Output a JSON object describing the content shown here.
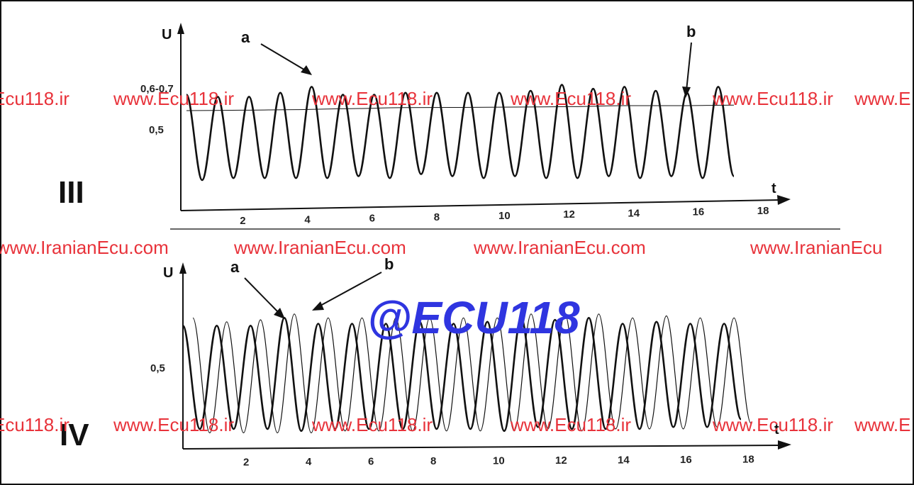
{
  "chart_data": [
    {
      "type": "line",
      "panel_label": "III",
      "ylabel": "U",
      "xlabel": "t",
      "x_ticks": [
        "2",
        "4",
        "6",
        "8",
        "10",
        "12",
        "14",
        "16",
        "18"
      ],
      "y_ticks": [
        "0,5",
        "0,6-0,7"
      ],
      "xlim": [
        0,
        18.5
      ],
      "annotations": [
        "a",
        "b"
      ],
      "series": [
        {
          "values": [
            0.63,
            0.2,
            0.62,
            0.21,
            0.62,
            0.21,
            0.64,
            0.21,
            0.67,
            0.21,
            0.63,
            0.22,
            0.63,
            0.21,
            0.64,
            0.23,
            0.64,
            0.22,
            0.64,
            0.21,
            0.64,
            0.22,
            0.65,
            0.21,
            0.68,
            0.21,
            0.66,
            0.22,
            0.67,
            0.21,
            0.65,
            0.22,
            0.64,
            0.21,
            0.67,
            0.22
          ]
        },
        {
          "values": [
            0.55,
            0.552,
            0.555,
            0.56,
            0.565,
            0.566,
            0.568,
            0.57,
            0.575,
            0.575,
            0.578
          ]
        }
      ]
    },
    {
      "type": "line",
      "panel_label": "IV",
      "ylabel": "U",
      "xlabel": "t",
      "x_ticks": [
        "2",
        "4",
        "6",
        "8",
        "10",
        "12",
        "14",
        "16",
        "18"
      ],
      "y_ticks": [
        "0,5"
      ],
      "xlim": [
        0,
        18.5
      ],
      "annotations": [
        "a",
        "b"
      ],
      "series": [
        {
          "values": [
            0.68,
            0.15,
            0.68,
            0.15,
            0.68,
            0.15,
            0.72,
            0.14,
            0.69,
            0.15,
            0.69,
            0.15,
            0.69,
            0.15,
            0.7,
            0.15,
            0.69,
            0.15,
            0.7,
            0.14,
            0.72,
            0.16,
            0.71,
            0.15,
            0.72,
            0.15,
            0.69,
            0.15,
            0.7,
            0.16,
            0.69,
            0.16,
            0.69,
            0.2
          ]
        },
        {
          "values": [
            0.72,
            0.13,
            0.7,
            0.13,
            0.71,
            0.13,
            0.74,
            0.13,
            0.72,
            0.14,
            0.72,
            0.14,
            0.72,
            0.14,
            0.72,
            0.14,
            0.72,
            0.14,
            0.72,
            0.14,
            0.74,
            0.15,
            0.74,
            0.14,
            0.74,
            0.15,
            0.72,
            0.15,
            0.73,
            0.15,
            0.72,
            0.16,
            0.72,
            0.18
          ]
        }
      ]
    }
  ],
  "watermarks": {
    "row1": [
      "Ecu118.ir",
      "www.Ecu118.ir",
      "www.Ecu118.ir",
      "www.Ecu118.ir",
      "www.Ecu118.ir",
      "www.E"
    ],
    "row2": [
      "www.IranianEcu.com",
      "www.IranianEcu.com",
      "www.IranianEcu.com",
      "www.IranianEcu"
    ],
    "row3": [
      "Ecu118.ir",
      "www.Ecu118.ir",
      "www.Ecu118.ir",
      "www.Ecu118.ir",
      "www.Ecu118.ir",
      "www.E"
    ],
    "center": "@ECU118"
  },
  "colors": {
    "watermark": "#e8323a",
    "center_watermark": "#2f35e0",
    "ink": "#111111"
  }
}
